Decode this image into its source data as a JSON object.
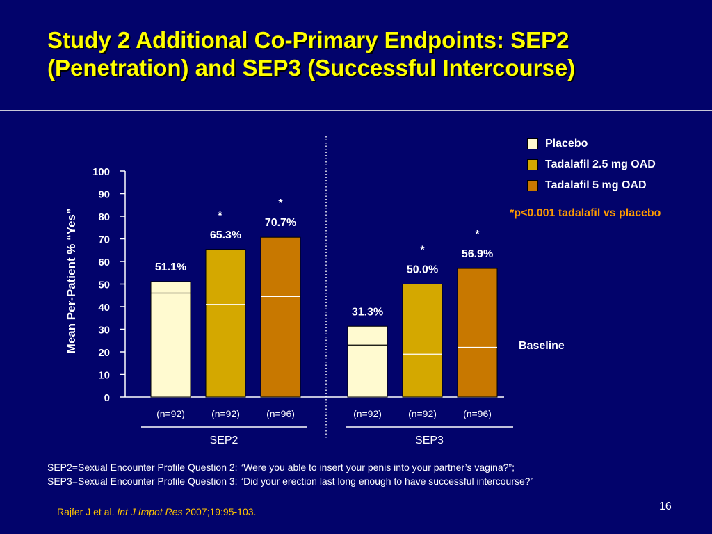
{
  "slide": {
    "title_line1": "Study 2 Additional Co-Primary Endpoints: SEP2",
    "title_line2": "(Penetration) and SEP3 (Successful Intercourse)",
    "footnote_line1": "SEP2=Sexual Encounter Profile Question 2: “Were you able to insert your penis into your partner’s vagina?”;",
    "footnote_line2": "SEP3=Sexual Encounter Profile Question 3: “Did your erection last long enough to have successful intercourse?”",
    "citation_authors": "Rajfer J et al. ",
    "citation_journal": "Int J Impot Res",
    "citation_details": " 2007;19:95-103.",
    "page_number": "16",
    "significance_note": "*p<0.001 tadalafil  vs placebo",
    "baseline_label": "Baseline"
  },
  "colors": {
    "background": "#02036b",
    "title": "#ffff00",
    "placebo": "#fffad0",
    "tadalafil_2_5": "#d4a800",
    "tadalafil_5": "#c87800",
    "note": "#ff9c00"
  },
  "chart_data": {
    "type": "bar",
    "ylabel": "Mean Per-Patient % “Yes”",
    "ylim": [
      0,
      100
    ],
    "yticks": [
      0,
      10,
      20,
      30,
      40,
      50,
      60,
      70,
      80,
      90,
      100
    ],
    "legend_position": "top-right",
    "series": [
      {
        "name": "Placebo",
        "color": "#fffad0"
      },
      {
        "name": "Tadalafil 2.5 mg OAD",
        "color": "#d4a800"
      },
      {
        "name": "Tadalafil 5 mg OAD",
        "color": "#c87800"
      }
    ],
    "groups": [
      {
        "label": "SEP2",
        "bars": [
          {
            "series": "Placebo",
            "value": 51.1,
            "label": "51.1%",
            "baseline": 46,
            "n": "(n=92)",
            "star": ""
          },
          {
            "series": "Tadalafil 2.5 mg OAD",
            "value": 65.3,
            "label": "65.3%",
            "baseline": 41,
            "n": "(n=92)",
            "star": "*"
          },
          {
            "series": "Tadalafil 5 mg OAD",
            "value": 70.7,
            "label": "70.7%",
            "baseline": 44.5,
            "n": "(n=96)",
            "star": "*"
          }
        ]
      },
      {
        "label": "SEP3",
        "bars": [
          {
            "series": "Placebo",
            "value": 31.3,
            "label": "31.3%",
            "baseline": 23,
            "n": "(n=92)",
            "star": ""
          },
          {
            "series": "Tadalafil 2.5 mg OAD",
            "value": 50.0,
            "label": "50.0%",
            "baseline": 19,
            "n": "(n=92)",
            "star": "*"
          },
          {
            "series": "Tadalafil 5 mg OAD",
            "value": 56.9,
            "label": "56.9%",
            "baseline": 22,
            "n": "(n=96)",
            "star": "*"
          }
        ]
      }
    ]
  }
}
